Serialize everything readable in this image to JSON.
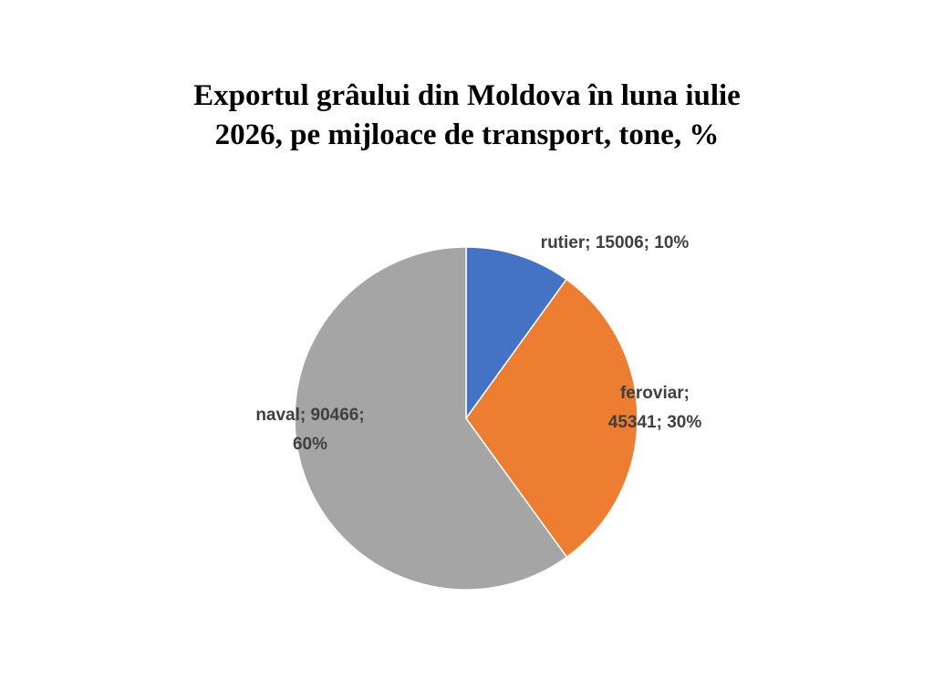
{
  "chart_data": {
    "type": "pie",
    "title": "Exportul grâului din Moldova în luna iulie 2026, pe mijloace de transport, tone, %",
    "categories": [
      "rutier",
      "feroviar",
      "naval"
    ],
    "values": [
      15006,
      45341,
      90466
    ],
    "value_labels": [
      "rutier; 15006; 10%",
      "feroviar; 45341; 30%",
      "naval; 90466; 60%"
    ],
    "colors": [
      "#4472c4",
      "#ed7d31",
      "#a5a5a5"
    ]
  }
}
